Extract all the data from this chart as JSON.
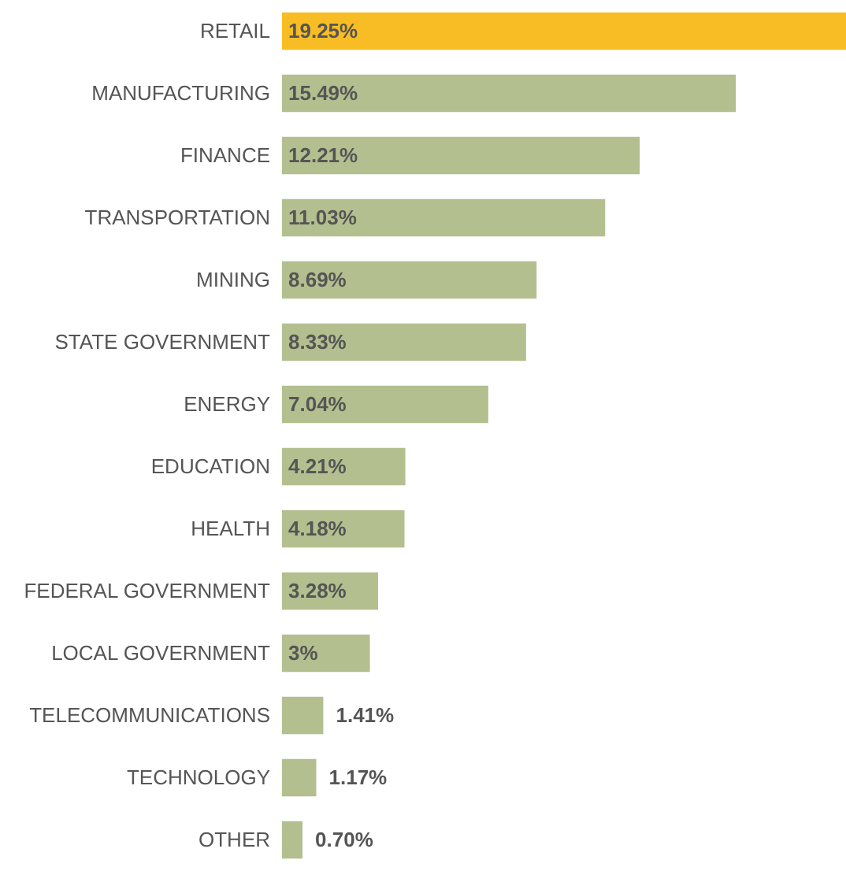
{
  "chart_data": {
    "type": "bar",
    "orientation": "horizontal",
    "categories": [
      "RETAIL",
      "MANUFACTURING",
      "FINANCE",
      "TRANSPORTATION",
      "MINING",
      "STATE GOVERNMENT",
      "ENERGY",
      "EDUCATION",
      "HEALTH",
      "FEDERAL GOVERNMENT",
      "LOCAL GOVERNMENT",
      "TELECOMMUNICATIONS",
      "TECHNOLOGY",
      "OTHER"
    ],
    "values": [
      19.25,
      15.49,
      12.21,
      11.03,
      8.69,
      8.33,
      7.04,
      4.21,
      4.18,
      3.28,
      3,
      1.41,
      1.17,
      0.7
    ],
    "value_labels": [
      "19.25%",
      "15.49%",
      "12.21%",
      "11.03%",
      "8.69%",
      "8.33%",
      "7.04%",
      "4.21%",
      "4.18%",
      "3.28%",
      "3%",
      "1.41%",
      "1.17%",
      "0.70%"
    ],
    "colors": [
      "#f8bd25",
      "#b3bf8f",
      "#b3bf8f",
      "#b3bf8f",
      "#b3bf8f",
      "#b3bf8f",
      "#b3bf8f",
      "#b3bf8f",
      "#b3bf8f",
      "#b3bf8f",
      "#b3bf8f",
      "#b3bf8f",
      "#b3bf8f",
      "#b3bf8f"
    ]
  }
}
